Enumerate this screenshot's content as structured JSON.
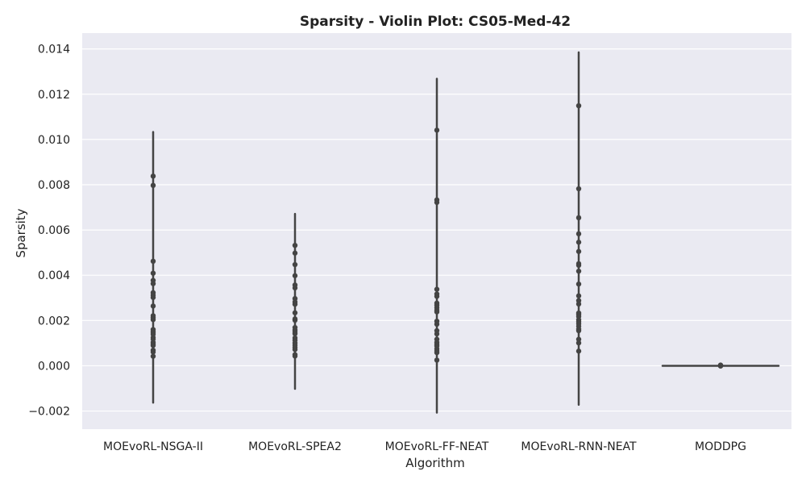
{
  "chart_data": {
    "type": "violin",
    "title": "Sparsity - Violin Plot: CS05-Med-42",
    "xlabel": "Algorithm",
    "ylabel": "Sparsity",
    "ylim": [
      -0.0028,
      0.0147
    ],
    "yticks": [
      -0.002,
      0.0,
      0.002,
      0.004,
      0.006,
      0.008,
      0.01,
      0.012,
      0.014
    ],
    "ytick_labels": [
      "−0.002",
      "0.000",
      "0.002",
      "0.004",
      "0.006",
      "0.008",
      "0.010",
      "0.012",
      "0.014"
    ],
    "grid": true,
    "categories": [
      "MOEvoRL-NSGA-II",
      "MOEvoRL-SPEA2",
      "MOEvoRL-FF-NEAT",
      "MOEvoRL-RNN-NEAT",
      "MODDPG"
    ],
    "series": [
      {
        "extent": [
          -0.00163,
          0.01033
        ],
        "points": [
          0.00838,
          0.00797,
          0.00462,
          0.00409,
          0.00377,
          0.00363,
          0.00323,
          0.00312,
          0.00302,
          0.00264,
          0.00221,
          0.00212,
          0.00204,
          0.0016,
          0.00152,
          0.00145,
          0.00139,
          0.00125,
          0.00118,
          0.00104,
          0.00097,
          0.0009,
          0.00069,
          0.00061,
          0.00042
        ]
      },
      {
        "extent": [
          -0.00102,
          0.00671
        ],
        "points": [
          0.00532,
          0.00498,
          0.00447,
          0.00398,
          0.00357,
          0.00344,
          0.00297,
          0.00282,
          0.00272,
          0.00234,
          0.00207,
          0.00201,
          0.00169,
          0.00158,
          0.0015,
          0.00142,
          0.00123,
          0.00113,
          0.00101,
          0.00091,
          0.00081,
          0.00072,
          0.00049,
          0.00043
        ]
      },
      {
        "extent": [
          -0.00207,
          0.01268
        ],
        "points": [
          0.01041,
          0.00733,
          0.00722,
          0.00338,
          0.00317,
          0.00307,
          0.00277,
          0.00267,
          0.00257,
          0.00246,
          0.00238,
          0.00197,
          0.00184,
          0.00155,
          0.00141,
          0.00117,
          0.00103,
          0.00095,
          0.00087,
          0.00075,
          0.00066,
          0.00058,
          0.00025
        ]
      },
      {
        "extent": [
          -0.00172,
          0.01385
        ],
        "points": [
          0.01149,
          0.00782,
          0.00654,
          0.00583,
          0.00546,
          0.00505,
          0.00451,
          0.00444,
          0.00418,
          0.00361,
          0.00309,
          0.00288,
          0.00273,
          0.00233,
          0.00226,
          0.00217,
          0.00203,
          0.00195,
          0.00186,
          0.00175,
          0.00162,
          0.00155,
          0.00117,
          0.00101,
          0.00065
        ]
      },
      {
        "extent": [
          0.0,
          0.0
        ],
        "points": [
          3e-05,
          2e-05,
          1e-05,
          0.0,
          -1e-05,
          0.0,
          1e-05
        ]
      }
    ]
  },
  "colors": {
    "background": "#eaeaf2",
    "grid": "#ffffff",
    "mark": "#444444"
  }
}
